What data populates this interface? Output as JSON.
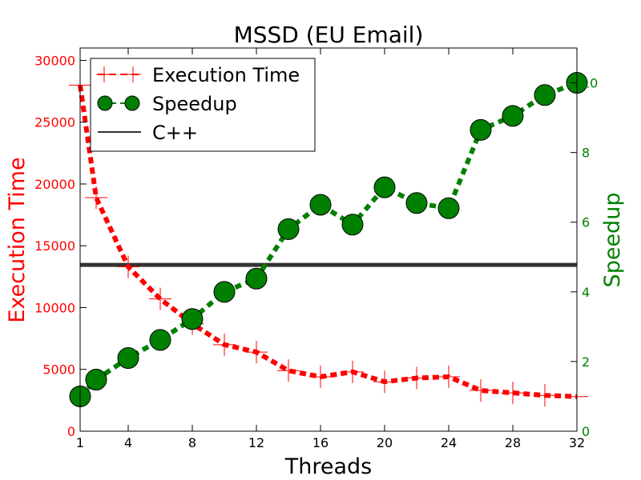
{
  "chart_data": {
    "type": "line",
    "title": "MSSD (EU Email)",
    "xlabel": "Threads",
    "ylabel_left": "Execution Time",
    "ylabel_right": "Speedup",
    "xlim": [
      1,
      32
    ],
    "ylim_left": [
      0,
      31000
    ],
    "ylim_right": [
      0,
      11
    ],
    "x_ticks": [
      1,
      4,
      8,
      12,
      16,
      20,
      24,
      28,
      32
    ],
    "y_ticks_left": [
      0,
      5000,
      10000,
      15000,
      20000,
      25000,
      30000
    ],
    "y_ticks_right": [
      0,
      2,
      4,
      6,
      8,
      10
    ],
    "legend_position": "top-left",
    "colors": {
      "execution": "#ff0000",
      "speedup": "#008000",
      "cpp": "#333333"
    },
    "x": [
      1,
      2,
      4,
      6,
      8,
      10,
      12,
      14,
      16,
      18,
      20,
      22,
      24,
      26,
      28,
      30,
      32
    ],
    "series": [
      {
        "name": "Execution Time",
        "axis": "left",
        "values": [
          28000,
          18900,
          13300,
          10700,
          8700,
          7000,
          6400,
          4900,
          4400,
          4800,
          4000,
          4300,
          4400,
          3300,
          3100,
          2900,
          2800
        ]
      },
      {
        "name": "Speedup",
        "axis": "right",
        "values": [
          1.0,
          1.48,
          2.1,
          2.62,
          3.22,
          4.0,
          4.38,
          5.8,
          6.5,
          5.93,
          7.0,
          6.55,
          6.4,
          8.65,
          9.05,
          9.65,
          10.0
        ]
      }
    ],
    "reference_lines": [
      {
        "name": "C++",
        "axis": "left",
        "value": 13450
      }
    ]
  }
}
